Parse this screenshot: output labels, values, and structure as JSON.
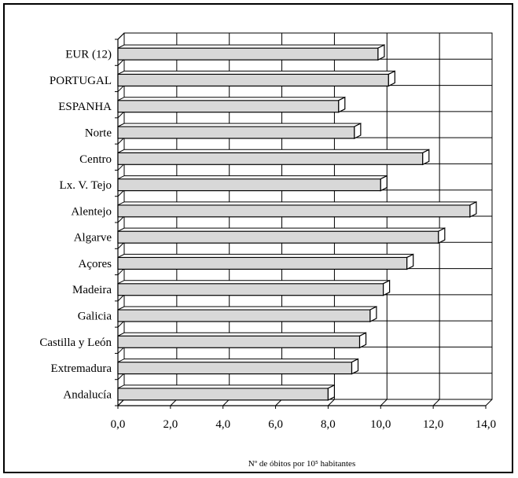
{
  "chart_data": {
    "type": "bar",
    "orientation": "horizontal",
    "categories": [
      "EUR (12)",
      "PORTUGAL",
      "ESPANHA",
      "Norte",
      "Centro",
      "Lx. V. Tejo",
      "Alentejo",
      "Algarve",
      "Açores",
      "Madeira",
      "Galicia",
      "Castilla y León",
      "Extremadura",
      "Andalucía"
    ],
    "values": [
      9.9,
      10.3,
      8.4,
      9.0,
      11.6,
      10.0,
      13.4,
      12.2,
      11.0,
      10.1,
      9.6,
      9.2,
      8.9,
      8.0
    ],
    "xlabel": "Nº de óbitos por 10⁵ habitantes",
    "xlim": [
      0,
      14
    ],
    "xticks": [
      "0,0",
      "2,0",
      "4,0",
      "6,0",
      "8,0",
      "10,0",
      "12,0",
      "14,0"
    ],
    "grid": true,
    "bar_fill": "#d8d8d8",
    "bar_stroke": "#000000"
  }
}
